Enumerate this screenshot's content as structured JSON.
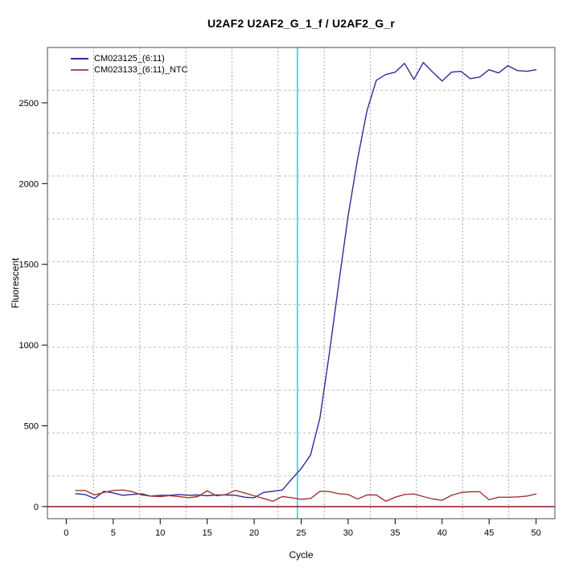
{
  "title": "U2AF2  U2AF2_G_1_f / U2AF2_G_r",
  "legend": {
    "items": [
      {
        "label": "CM023125_(6:11)",
        "color": "#2d2d97"
      },
      {
        "label": "CM023133_(6:11)_NTC",
        "color": "#b05050"
      }
    ]
  },
  "chart_data": {
    "type": "line",
    "title": "U2AF2  U2AF2_G_1_f / U2AF2_G_r",
    "xlabel": "Cycle",
    "ylabel": "Fluorescent",
    "xlim": [
      -2,
      52
    ],
    "ylim": [
      -75,
      2843
    ],
    "xticks": [
      0,
      5,
      10,
      15,
      20,
      25,
      30,
      35,
      40,
      45,
      50
    ],
    "yticks": [
      0,
      500,
      1000,
      1500,
      2000,
      2500
    ],
    "grid": {
      "divisions": 11,
      "h_color": "#bfbfbf",
      "v_color": "#8f8f8f"
    },
    "x": [
      1,
      2,
      3,
      4,
      5,
      6,
      7,
      8,
      9,
      10,
      11,
      12,
      13,
      14,
      15,
      16,
      17,
      18,
      19,
      20,
      21,
      22,
      23,
      24,
      25,
      26,
      27,
      28,
      29,
      30,
      31,
      32,
      33,
      34,
      35,
      36,
      37,
      38,
      39,
      40,
      41,
      42,
      43,
      44,
      45,
      46,
      47,
      48,
      49,
      50
    ],
    "series": [
      {
        "name": "CM023125_(6:11)",
        "color": "#2d2d97",
        "values": [
          80,
          75,
          50,
          95,
          85,
          70,
          75,
          80,
          65,
          70,
          70,
          75,
          70,
          72,
          67,
          72,
          72,
          70,
          58,
          55,
          88,
          95,
          103,
          170,
          235,
          320,
          550,
          950,
          1380,
          1800,
          2150,
          2450,
          2640,
          2675,
          2690,
          2745,
          2645,
          2750,
          2690,
          2635,
          2690,
          2695,
          2650,
          2660,
          2705,
          2685,
          2730,
          2700,
          2695,
          2705
        ]
      },
      {
        "name": "CM023133_(6:11)_NTC",
        "color": "#a03636",
        "values": [
          100,
          100,
          72,
          88,
          100,
          103,
          93,
          72,
          65,
          62,
          68,
          62,
          55,
          62,
          98,
          67,
          75,
          100,
          84,
          67,
          50,
          33,
          62,
          55,
          45,
          50,
          95,
          93,
          80,
          75,
          47,
          72,
          72,
          33,
          58,
          75,
          78,
          62,
          47,
          39,
          70,
          87,
          92,
          92,
          42,
          58,
          58,
          60,
          65,
          78
        ]
      }
    ],
    "zero_line": {
      "y": 0,
      "color": "#8b1a1a"
    },
    "ct_line": {
      "x": 24.6,
      "color": "#00dede"
    },
    "box_color": "#4d4d4d",
    "tick_color": "#000000",
    "legend_position": "top-left"
  }
}
